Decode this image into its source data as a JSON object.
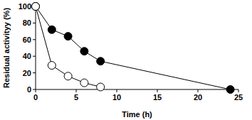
{
  "chart_data": {
    "type": "line",
    "x_label": "Time (h)",
    "y_label": "Residual activityy (%)",
    "x": [
      0,
      2,
      4,
      6,
      8,
      24
    ],
    "series": [
      {
        "color": "#000000",
        "marker": "filled_circle",
        "line_style": "solid",
        "values": [
          100,
          72,
          64,
          46,
          34,
          0
        ]
      },
      {
        "color": "#000000",
        "marker": "open_circle",
        "line_style": "solid",
        "values": [
          100,
          29,
          16,
          8,
          3,
          null
        ]
      }
    ],
    "xlim": [
      0,
      25
    ],
    "ylim": [
      0,
      100
    ],
    "xticks": [
      0,
      5,
      10,
      15,
      20,
      25
    ],
    "yticks": [
      0,
      20,
      40,
      60,
      80,
      100
    ],
    "grid": false
  }
}
